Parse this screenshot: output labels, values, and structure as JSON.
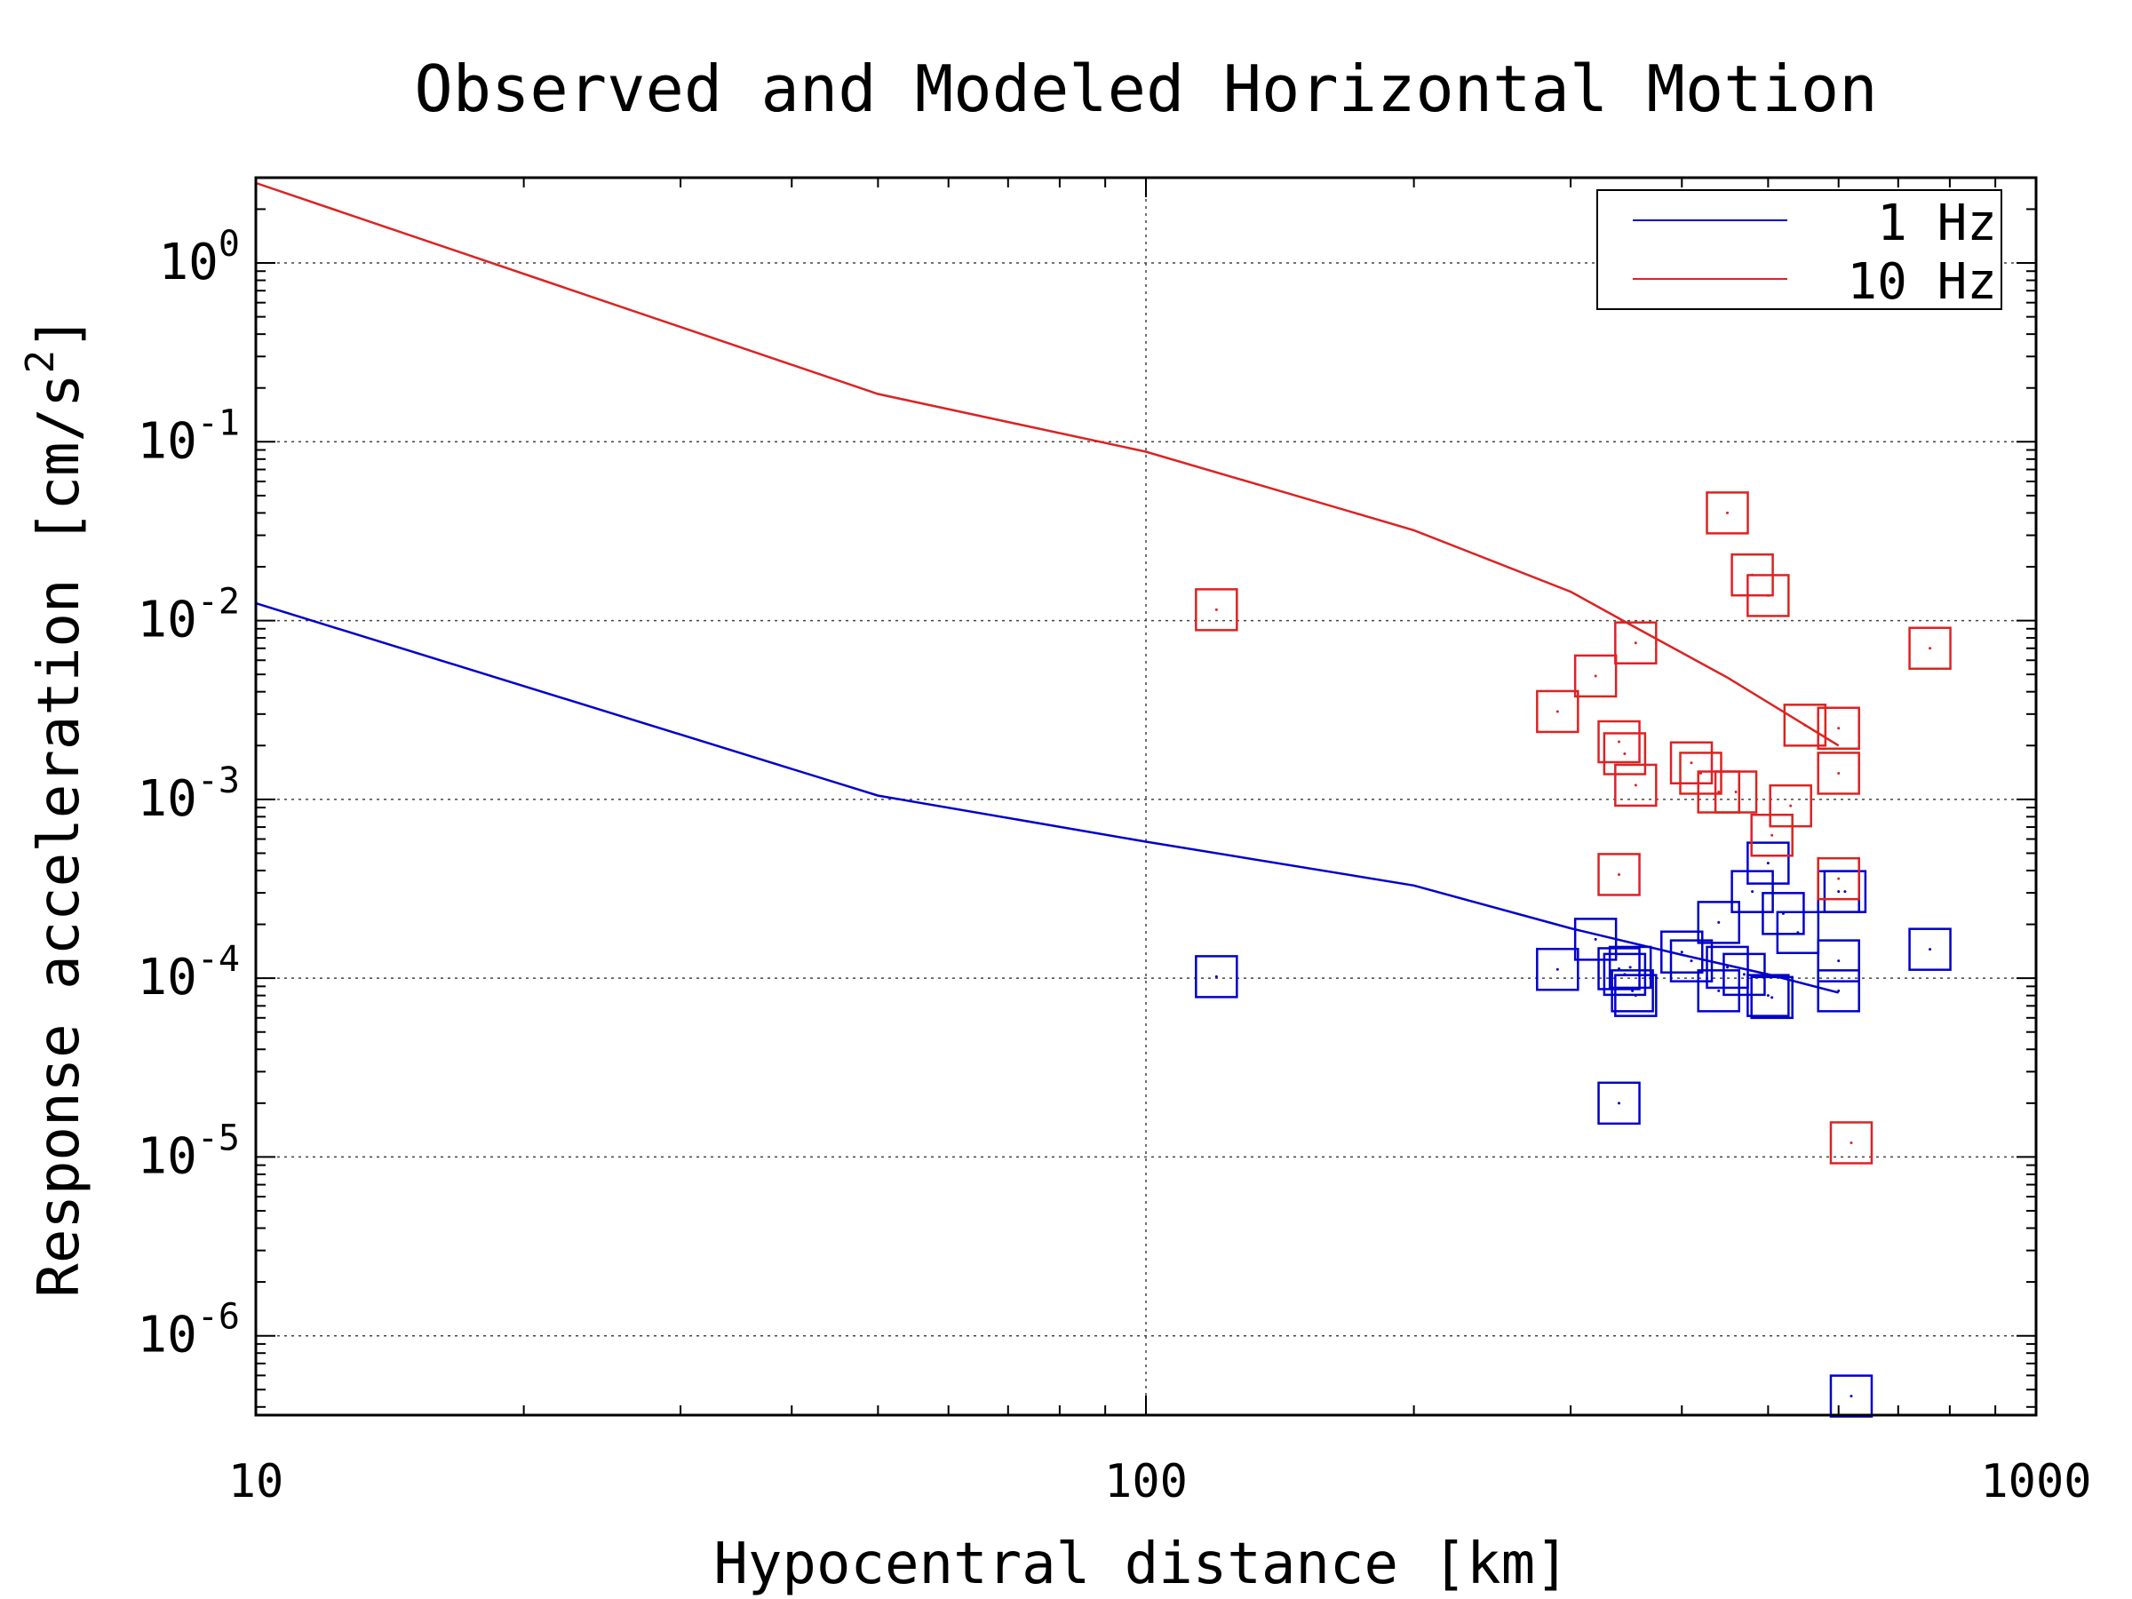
{
  "chart_data": {
    "type": "scatter",
    "title": "Observed and Modeled Horizontal Motion",
    "xlabel": "Hypocentral distance [km]",
    "ylabel": "Response acceleration [cm/s",
    "ylabel_sup": "2",
    "ylabel_tail": "]",
    "x_scale": "log",
    "y_scale": "log",
    "xlim": [
      10,
      1000
    ],
    "ylim": [
      3.6e-07,
      3.0
    ],
    "x_ticks": [
      {
        "value": 10,
        "label": "10"
      },
      {
        "value": 100,
        "label": "100"
      },
      {
        "value": 1000,
        "label": "1000"
      }
    ],
    "y_ticks": [
      {
        "value": 1,
        "base": "10",
        "exp": "0"
      },
      {
        "value": 0.1,
        "base": "10",
        "exp": "-1"
      },
      {
        "value": 0.01,
        "base": "10",
        "exp": "-2"
      },
      {
        "value": 0.001,
        "base": "10",
        "exp": "-3"
      },
      {
        "value": 0.0001,
        "base": "10",
        "exp": "-4"
      },
      {
        "value": 1e-05,
        "base": "10",
        "exp": "-5"
      },
      {
        "value": 1e-06,
        "base": "10",
        "exp": "-6"
      }
    ],
    "grid": true,
    "legend_position": "top-right",
    "series": [
      {
        "name": "1 Hz",
        "color": "#0000cc",
        "model_line": {
          "x": [
            10,
            50,
            100,
            200,
            300,
            400,
            500,
            600
          ],
          "y": [
            0.0125,
            0.00105,
            0.00058,
            0.00033,
            0.00019,
            0.000135,
            0.000105,
            8.3e-05
          ]
        },
        "observations": {
          "x": [
            120,
            290,
            320,
            340,
            345,
            350,
            352,
            355,
            340,
            400,
            410,
            440,
            440,
            450,
            470,
            480,
            500,
            505,
            500,
            520,
            540,
            600,
            600,
            600,
            610,
            760,
            620
          ],
          "y": [
            0.000102,
            0.000112,
            0.000165,
            0.000113,
            0.000105,
            0.000115,
            8.5e-05,
            8e-05,
            2e-05,
            0.00014,
            0.000125,
            8.5e-05,
            0.000205,
            0.000115,
            0.000105,
            0.000305,
            8e-05,
            7.8e-05,
            0.00044,
            0.00023,
            0.00018,
            0.000305,
            0.000125,
            8.5e-05,
            0.000305,
            0.000145,
            4.6e-07
          ]
        }
      },
      {
        "name": "10 Hz",
        "color": "#dd2222",
        "model_line": {
          "x": [
            10,
            50,
            100,
            200,
            300,
            350,
            450,
            600
          ],
          "y": [
            2.8,
            0.185,
            0.088,
            0.032,
            0.0145,
            0.0095,
            0.0048,
            0.002
          ]
        },
        "observations": {
          "x": [
            120,
            290,
            320,
            340,
            345,
            355,
            355,
            340,
            410,
            420,
            440,
            460,
            450,
            480,
            500,
            505,
            530,
            550,
            600,
            600,
            600,
            620,
            760
          ],
          "y": [
            0.0115,
            0.0031,
            0.0049,
            0.0021,
            0.0018,
            0.0012,
            0.0075,
            0.00038,
            0.0016,
            0.0014,
            0.0011,
            0.0011,
            0.04,
            0.018,
            0.0138,
            0.00063,
            0.00092,
            0.0026,
            0.0025,
            0.0014,
            0.00036,
            1.2e-05,
            0.007
          ]
        }
      }
    ]
  }
}
